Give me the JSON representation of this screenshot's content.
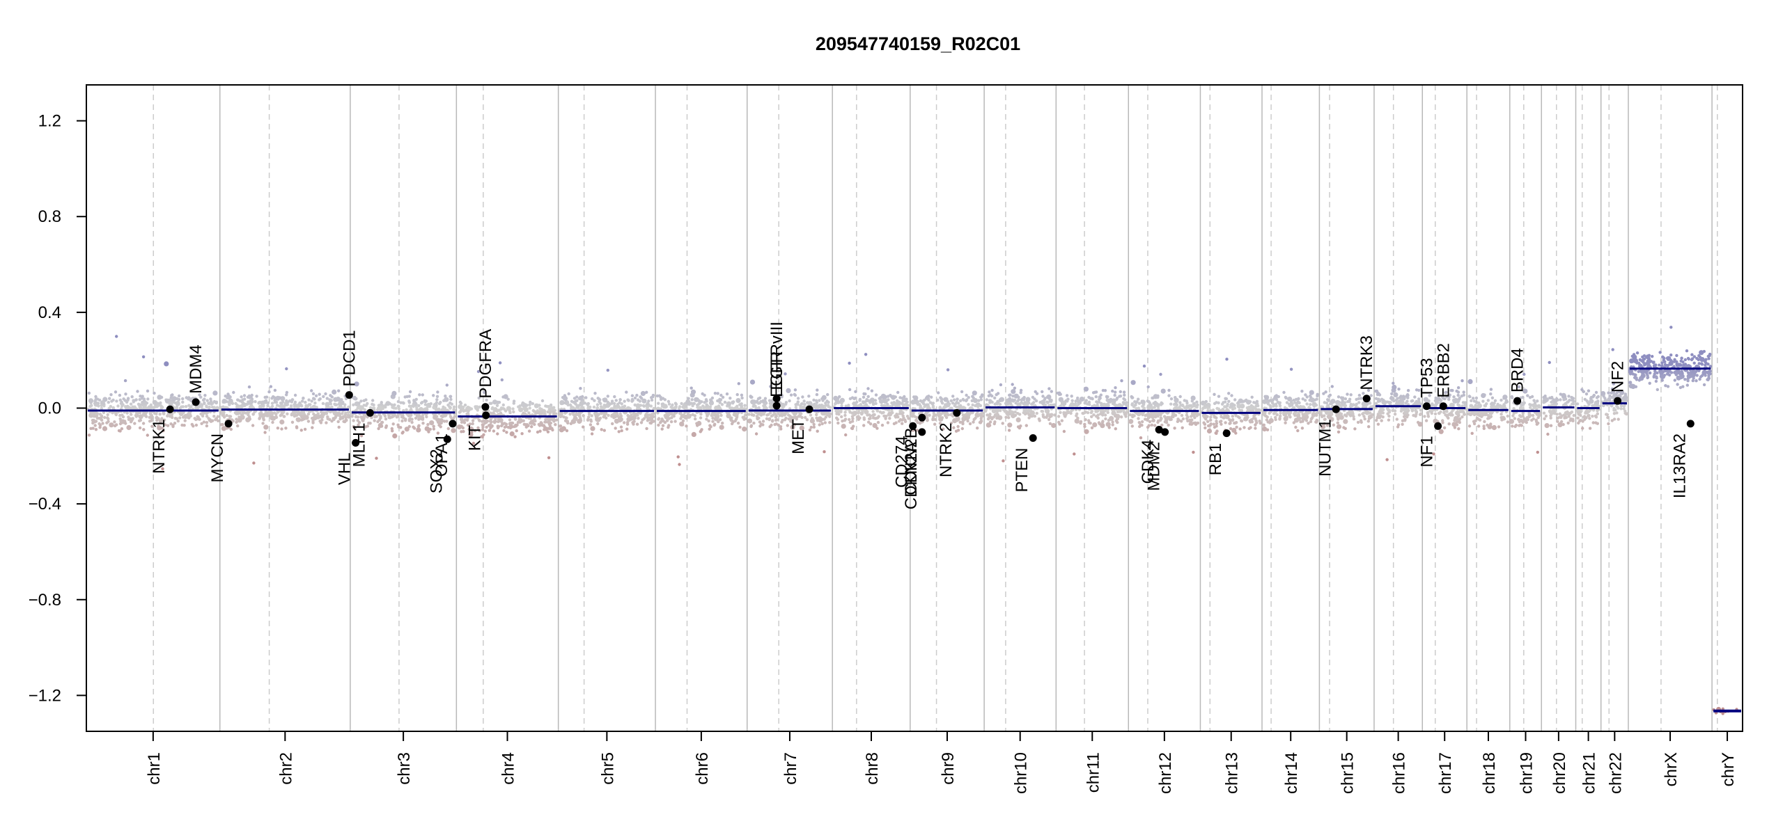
{
  "chart_data": {
    "type": "scatter",
    "title": "209547740159_R02C01",
    "xlabel": "",
    "ylabel": "",
    "ylim": [
      -1.35,
      1.35
    ],
    "yticks": [
      1.2,
      0.8,
      0.4,
      0.0,
      -0.4,
      -0.8,
      -1.2
    ],
    "ytick_labels": [
      "1.2",
      "0.8",
      "0.4",
      "0.0",
      "−0.4",
      "−0.8",
      "−1.2"
    ],
    "grid": "vertical chromosome boundaries (solid) and centromeres (dashed)",
    "legend": "none",
    "colors": {
      "gain": "#8e8ec0",
      "loss": "#bf8f8f",
      "neutral": "#cfcfcf",
      "segment": "#00007f",
      "gene_marker": "#000000",
      "boundary": "#b8b8b8",
      "centromere": "#cccccc"
    },
    "chromosomes": [
      {
        "name": "chr1",
        "start": 0,
        "end": 249,
        "centromere": 125,
        "segment": -0.01
      },
      {
        "name": "chr2",
        "start": 249,
        "end": 492,
        "centromere": 341,
        "segment": -0.006
      },
      {
        "name": "chr3",
        "start": 492,
        "end": 690,
        "centromere": 583,
        "segment": -0.018
      },
      {
        "name": "chr4",
        "start": 690,
        "end": 880,
        "centromere": 740,
        "segment": -0.035
      },
      {
        "name": "chr5",
        "start": 880,
        "end": 1061,
        "centromere": 928,
        "segment": -0.012
      },
      {
        "name": "chr6",
        "start": 1061,
        "end": 1232,
        "centromere": 1120,
        "segment": -0.012
      },
      {
        "name": "chr7",
        "start": 1232,
        "end": 1391,
        "centromere": 1291,
        "segment": -0.01
      },
      {
        "name": "chr8",
        "start": 1391,
        "end": 1536,
        "centromere": 1436,
        "segment": 0.0
      },
      {
        "name": "chr9",
        "start": 1536,
        "end": 1674,
        "centromere": 1585,
        "segment": -0.01
      },
      {
        "name": "chr10",
        "start": 1674,
        "end": 1808,
        "centromere": 1714,
        "segment": 0.003
      },
      {
        "name": "chr11",
        "start": 1808,
        "end": 1943,
        "centromere": 1861,
        "segment": 0.0
      },
      {
        "name": "chr12",
        "start": 1943,
        "end": 2077,
        "centromere": 1979,
        "segment": -0.012
      },
      {
        "name": "chr13",
        "start": 2077,
        "end": 2192,
        "centromere": 2095,
        "segment": -0.02
      },
      {
        "name": "chr14",
        "start": 2192,
        "end": 2299,
        "centromere": 2209,
        "segment": -0.008
      },
      {
        "name": "chr15",
        "start": 2299,
        "end": 2401,
        "centromere": 2318,
        "segment": -0.004
      },
      {
        "name": "chr16",
        "start": 2401,
        "end": 2491,
        "centromere": 2437,
        "segment": 0.008
      },
      {
        "name": "chr17",
        "start": 2491,
        "end": 2574,
        "centromere": 2515,
        "segment": 0.0
      },
      {
        "name": "chr18",
        "start": 2574,
        "end": 2654,
        "centromere": 2592,
        "segment": -0.008
      },
      {
        "name": "chr19",
        "start": 2654,
        "end": 2713,
        "centromere": 2680,
        "segment": -0.012
      },
      {
        "name": "chr20",
        "start": 2713,
        "end": 2777,
        "centromere": 2741,
        "segment": 0.003
      },
      {
        "name": "chr21",
        "start": 2777,
        "end": 2824,
        "centromere": 2789,
        "segment": 0.0
      },
      {
        "name": "chr22",
        "start": 2824,
        "end": 2875,
        "centromere": 2839,
        "segment": 0.02
      },
      {
        "name": "chrX",
        "start": 2875,
        "end": 3031,
        "centromere": 2936,
        "segment": 0.165
      },
      {
        "name": "chrY",
        "start": 3031,
        "end": 3088,
        "centromere": 3041,
        "segment": -1.265
      }
    ],
    "genes": [
      {
        "name": "NTRK1",
        "pos": 156,
        "value": -0.005,
        "label_side": "below"
      },
      {
        "name": "MDM4",
        "pos": 204,
        "value": 0.025,
        "label_side": "above"
      },
      {
        "name": "MYCN",
        "pos": 265,
        "value": -0.065,
        "label_side": "below"
      },
      {
        "name": "PDCD1",
        "pos": 490,
        "value": 0.055,
        "label_side": "above"
      },
      {
        "name": "VHL",
        "pos": 502,
        "value": -0.145,
        "label_side": "below"
      },
      {
        "name": "MLH1",
        "pos": 529,
        "value": -0.02,
        "label_side": "below"
      },
      {
        "name": "SOX2",
        "pos": 673,
        "value": -0.13,
        "label_side": "below"
      },
      {
        "name": "OPA1",
        "pos": 683,
        "value": -0.065,
        "label_side": "below"
      },
      {
        "name": "PDGFRA",
        "pos": 744,
        "value": 0.005,
        "label_side": "above"
      },
      {
        "name": "KIT",
        "pos": 745,
        "value": -0.03,
        "label_side": "below"
      },
      {
        "name": "EGFRvIII",
        "pos": 1287,
        "value": 0.04,
        "label_side": "above"
      },
      {
        "name": "EGFR",
        "pos": 1287,
        "value": 0.01,
        "label_side": "above"
      },
      {
        "name": "MET",
        "pos": 1348,
        "value": -0.005,
        "label_side": "below"
      },
      {
        "name": "CD274",
        "pos": 1541,
        "value": -0.075,
        "label_side": "below"
      },
      {
        "name": "CDKN2A",
        "pos": 1558,
        "value": -0.1,
        "label_side": "below"
      },
      {
        "name": "CDKN2B",
        "pos": 1558,
        "value": -0.04,
        "label_side": "below"
      },
      {
        "name": "NTRK2",
        "pos": 1623,
        "value": -0.02,
        "label_side": "below"
      },
      {
        "name": "PTEN",
        "pos": 1765,
        "value": -0.125,
        "label_side": "below"
      },
      {
        "name": "CDK4",
        "pos": 2000,
        "value": -0.09,
        "label_side": "below"
      },
      {
        "name": "MDM2",
        "pos": 2011,
        "value": -0.1,
        "label_side": "below"
      },
      {
        "name": "RB1",
        "pos": 2126,
        "value": -0.105,
        "label_side": "below"
      },
      {
        "name": "NUTM1",
        "pos": 2330,
        "value": -0.005,
        "label_side": "below"
      },
      {
        "name": "NTRK3",
        "pos": 2387,
        "value": 0.04,
        "label_side": "above"
      },
      {
        "name": "TP53",
        "pos": 2499,
        "value": 0.008,
        "label_side": "above"
      },
      {
        "name": "ERBB2",
        "pos": 2530,
        "value": 0.008,
        "label_side": "above"
      },
      {
        "name": "NF1",
        "pos": 2520,
        "value": -0.075,
        "label_side": "below"
      },
      {
        "name": "BRD4",
        "pos": 2668,
        "value": 0.03,
        "label_side": "above"
      },
      {
        "name": "NF2",
        "pos": 2855,
        "value": 0.03,
        "label_side": "above"
      },
      {
        "name": "IL13RA2",
        "pos": 2991,
        "value": -0.065,
        "label_side": "below"
      }
    ]
  }
}
